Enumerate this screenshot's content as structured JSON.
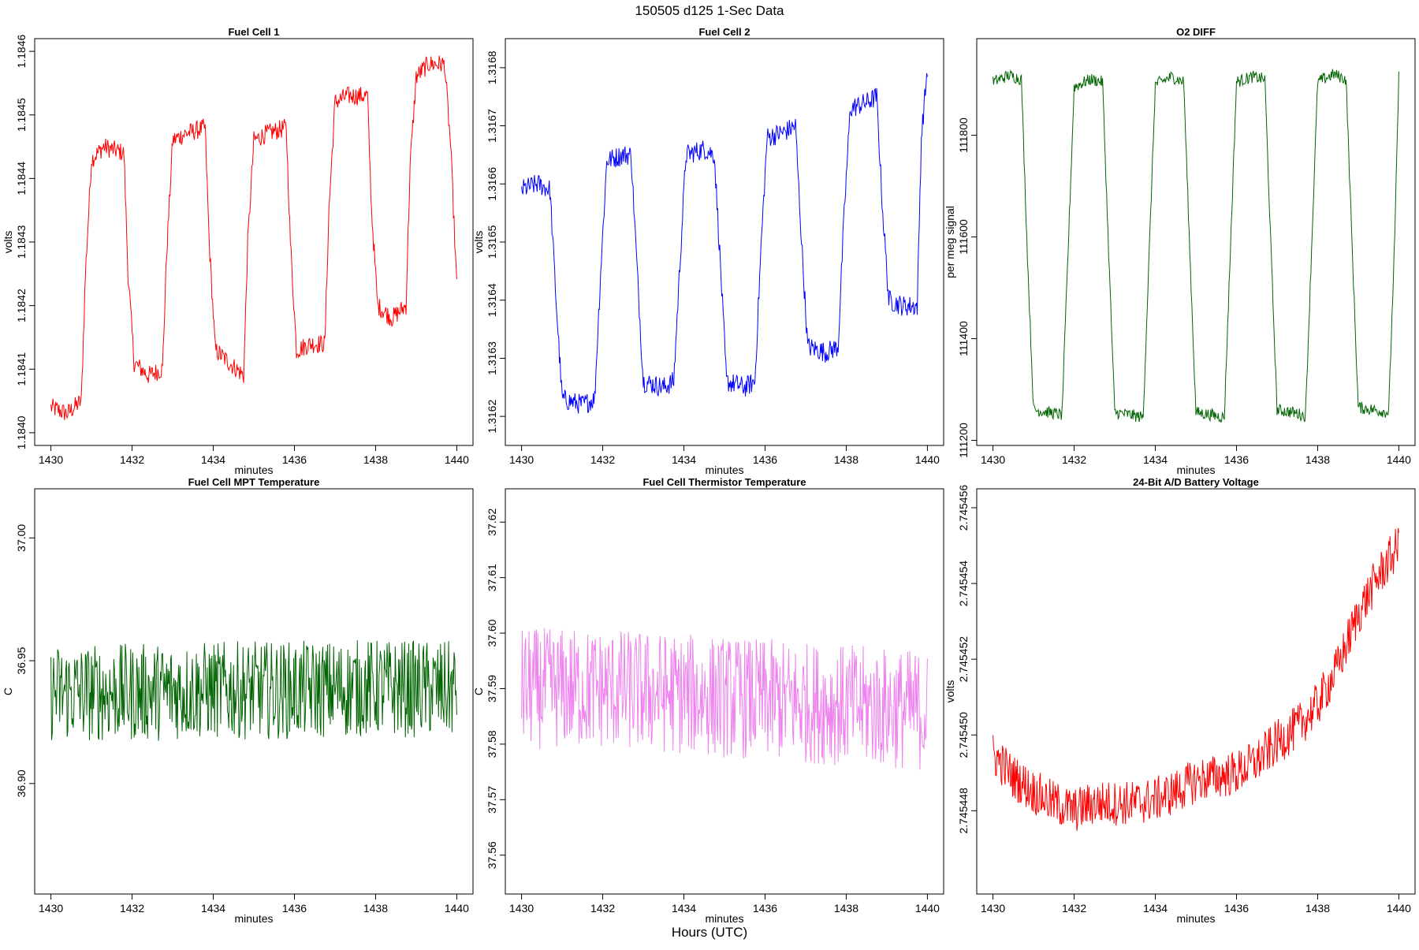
{
  "figure": {
    "title": "150505   d125   1-Sec Data",
    "xlabel": "Hours (UTC)"
  },
  "chart_data": [
    {
      "type": "line",
      "title": "Fuel Cell 1",
      "xlabel": "minutes",
      "ylabel": "volts",
      "color": "#ff0000",
      "xlim": [
        1429.6,
        1440.4
      ],
      "ylim": [
        1.18398,
        1.18462
      ],
      "xticks": [
        1430,
        1432,
        1434,
        1436,
        1438,
        1440
      ],
      "yticks": [
        1.184,
        1.1841,
        1.1842,
        1.1843,
        1.1844,
        1.1845,
        1.1846
      ],
      "ytick_labels": [
        "1.1840",
        "1.1841",
        "1.1842",
        "1.1843",
        "1.1844",
        "1.1845",
        "1.1846"
      ],
      "x": [
        1430.0,
        1430.4,
        1430.75,
        1430.85,
        1431.0,
        1431.3,
        1431.8,
        1431.9,
        1432.05,
        1432.4,
        1432.75,
        1432.85,
        1433.0,
        1433.3,
        1433.8,
        1433.9,
        1434.05,
        1434.4,
        1434.75,
        1434.85,
        1435.0,
        1435.3,
        1435.8,
        1435.9,
        1436.05,
        1436.4,
        1436.75,
        1436.85,
        1437.0,
        1437.3,
        1437.8,
        1437.9,
        1438.05,
        1438.4,
        1438.75,
        1438.85,
        1439.0,
        1439.3,
        1439.7,
        1439.85,
        1440.0
      ],
      "y": [
        1.18404,
        1.18403,
        1.18405,
        1.18425,
        1.18443,
        1.18445,
        1.18444,
        1.18425,
        1.18411,
        1.18409,
        1.1841,
        1.18428,
        1.18446,
        1.18447,
        1.18448,
        1.1843,
        1.18413,
        1.18411,
        1.18409,
        1.1843,
        1.18446,
        1.18447,
        1.18448,
        1.1843,
        1.18413,
        1.18414,
        1.18414,
        1.18435,
        1.18452,
        1.18453,
        1.18453,
        1.18435,
        1.1842,
        1.18418,
        1.1842,
        1.18442,
        1.18456,
        1.18458,
        1.18458,
        1.18445,
        1.18423
      ],
      "noise": 1.5e-05
    },
    {
      "type": "line",
      "title": "Fuel Cell 2",
      "xlabel": "minutes",
      "ylabel": "volts",
      "color": "#0000ff",
      "xlim": [
        1429.6,
        1440.4
      ],
      "ylim": [
        1.31615,
        1.31685
      ],
      "xticks": [
        1430,
        1432,
        1434,
        1436,
        1438,
        1440
      ],
      "yticks": [
        1.3162,
        1.3163,
        1.3164,
        1.3165,
        1.3166,
        1.3167,
        1.3168
      ],
      "ytick_labels": [
        "1.3162",
        "1.3163",
        "1.3164",
        "1.3165",
        "1.3166",
        "1.3167",
        "1.3168"
      ],
      "x": [
        1430.0,
        1430.4,
        1430.7,
        1430.85,
        1431.0,
        1431.5,
        1431.8,
        1431.95,
        1432.1,
        1432.5,
        1432.7,
        1432.85,
        1433.0,
        1433.5,
        1433.75,
        1433.9,
        1434.05,
        1434.5,
        1434.75,
        1434.9,
        1435.05,
        1435.5,
        1435.75,
        1435.9,
        1436.05,
        1436.5,
        1436.75,
        1436.9,
        1437.05,
        1437.5,
        1437.8,
        1437.95,
        1438.1,
        1438.5,
        1438.75,
        1438.9,
        1439.05,
        1439.4,
        1439.75,
        1439.85,
        1440.0
      ],
      "y": [
        1.31659,
        1.3166,
        1.31659,
        1.3164,
        1.31623,
        1.31622,
        1.31623,
        1.31645,
        1.31664,
        1.31665,
        1.31665,
        1.31645,
        1.31626,
        1.31625,
        1.31626,
        1.31646,
        1.31665,
        1.31666,
        1.31665,
        1.31646,
        1.31626,
        1.31625,
        1.31626,
        1.31649,
        1.31668,
        1.31669,
        1.3167,
        1.3165,
        1.31632,
        1.31631,
        1.31632,
        1.31655,
        1.31673,
        1.31674,
        1.31675,
        1.31655,
        1.3164,
        1.31639,
        1.31639,
        1.31668,
        1.3168
      ],
      "noise": 1.8e-05
    },
    {
      "type": "line",
      "title": "O2 DIFF",
      "xlabel": "minutes",
      "ylabel": "per meg signal",
      "color": "#006400",
      "xlim": [
        1429.6,
        1440.4
      ],
      "ylim": [
        111190,
        111990
      ],
      "xticks": [
        1430,
        1432,
        1434,
        1436,
        1438,
        1440
      ],
      "yticks": [
        111200,
        111400,
        111600,
        111800
      ],
      "ytick_labels": [
        "111200",
        "111400",
        "111600",
        "111800"
      ],
      "x": [
        1430.0,
        1430.4,
        1430.7,
        1430.85,
        1431.0,
        1431.4,
        1431.7,
        1431.85,
        1432.0,
        1432.4,
        1432.7,
        1432.85,
        1433.0,
        1433.4,
        1433.7,
        1433.85,
        1434.0,
        1434.4,
        1434.7,
        1434.85,
        1435.0,
        1435.4,
        1435.7,
        1435.85,
        1436.0,
        1436.4,
        1436.7,
        1436.85,
        1437.0,
        1437.4,
        1437.7,
        1437.85,
        1438.0,
        1438.4,
        1438.7,
        1438.85,
        1439.0,
        1439.4,
        1439.75,
        1439.9,
        1440.0
      ],
      "y": [
        111905,
        111918,
        111910,
        111560,
        111260,
        111255,
        111250,
        111570,
        111895,
        111910,
        111905,
        111570,
        111255,
        111250,
        111245,
        111570,
        111900,
        111915,
        111905,
        111570,
        111255,
        111250,
        111245,
        111575,
        111905,
        111915,
        111910,
        111575,
        111260,
        111255,
        111248,
        111575,
        111905,
        111920,
        111910,
        111580,
        111265,
        111260,
        111255,
        111600,
        111915
      ],
      "noise": 12
    },
    {
      "type": "line",
      "title": "Fuel Cell MPT Temperature",
      "xlabel": "minutes",
      "ylabel": "C",
      "color": "#006400",
      "xlim": [
        1429.6,
        1440.4
      ],
      "ylim": [
        36.855,
        37.02
      ],
      "xticks": [
        1430,
        1432,
        1434,
        1436,
        1438,
        1440
      ],
      "yticks": [
        36.9,
        36.95,
        37.0
      ],
      "ytick_labels": [
        "36.90",
        "36.95",
        "37.00"
      ],
      "x": [
        1430.0,
        1432.0,
        1434.0,
        1436.0,
        1438.0,
        1440.0
      ],
      "y": [
        36.937,
        36.937,
        36.938,
        36.938,
        36.939,
        36.938
      ],
      "noise": 0.02
    },
    {
      "type": "line",
      "title": "Fuel Cell Thermistor Temperature",
      "xlabel": "minutes",
      "ylabel": "C",
      "color": "#ee82ee",
      "xlim": [
        1429.6,
        1440.4
      ],
      "ylim": [
        37.553,
        37.626
      ],
      "xticks": [
        1430,
        1432,
        1434,
        1436,
        1438,
        1440
      ],
      "yticks": [
        37.56,
        37.57,
        37.58,
        37.59,
        37.6,
        37.61,
        37.62
      ],
      "ytick_labels": [
        "37.56",
        "37.57",
        "37.58",
        "37.59",
        "37.60",
        "37.61",
        "37.62"
      ],
      "x": [
        1430.0,
        1432.0,
        1434.0,
        1436.0,
        1438.0,
        1440.0
      ],
      "y": [
        37.59,
        37.59,
        37.589,
        37.588,
        37.587,
        37.586
      ],
      "noise": 0.011
    },
    {
      "type": "line",
      "title": "24-Bit A/D Battery Voltage",
      "xlabel": "minutes",
      "ylabel": "volts",
      "color": "#ff0000",
      "xlim": [
        1429.6,
        1440.4
      ],
      "ylim": [
        2.7454458,
        2.7454565
      ],
      "xticks": [
        1430,
        1432,
        1434,
        1436,
        1438,
        1440
      ],
      "yticks": [
        2.745448,
        2.74545,
        2.745452,
        2.745454,
        2.745456
      ],
      "ytick_labels": [
        "2.745448",
        "2.745450",
        "2.745452",
        "2.745454",
        "2.745456"
      ],
      "x": [
        1430.0,
        1430.5,
        1431.0,
        1431.5,
        1432.0,
        1432.5,
        1433.0,
        1433.5,
        1434.0,
        1434.5,
        1435.0,
        1435.5,
        1436.0,
        1436.5,
        1437.0,
        1437.5,
        1438.0,
        1438.5,
        1439.0,
        1439.5,
        1440.0
      ],
      "y": [
        2.7454495,
        2.7454489,
        2.7454485,
        2.7454482,
        2.745448,
        2.7454482,
        2.7454482,
        2.7454482,
        2.7454483,
        2.7454485,
        2.7454488,
        2.7454489,
        2.745449,
        2.7454493,
        2.7454498,
        2.7454502,
        2.7454508,
        2.7454518,
        2.7454532,
        2.7454542,
        2.745455
      ],
      "noise": 6e-07
    }
  ]
}
